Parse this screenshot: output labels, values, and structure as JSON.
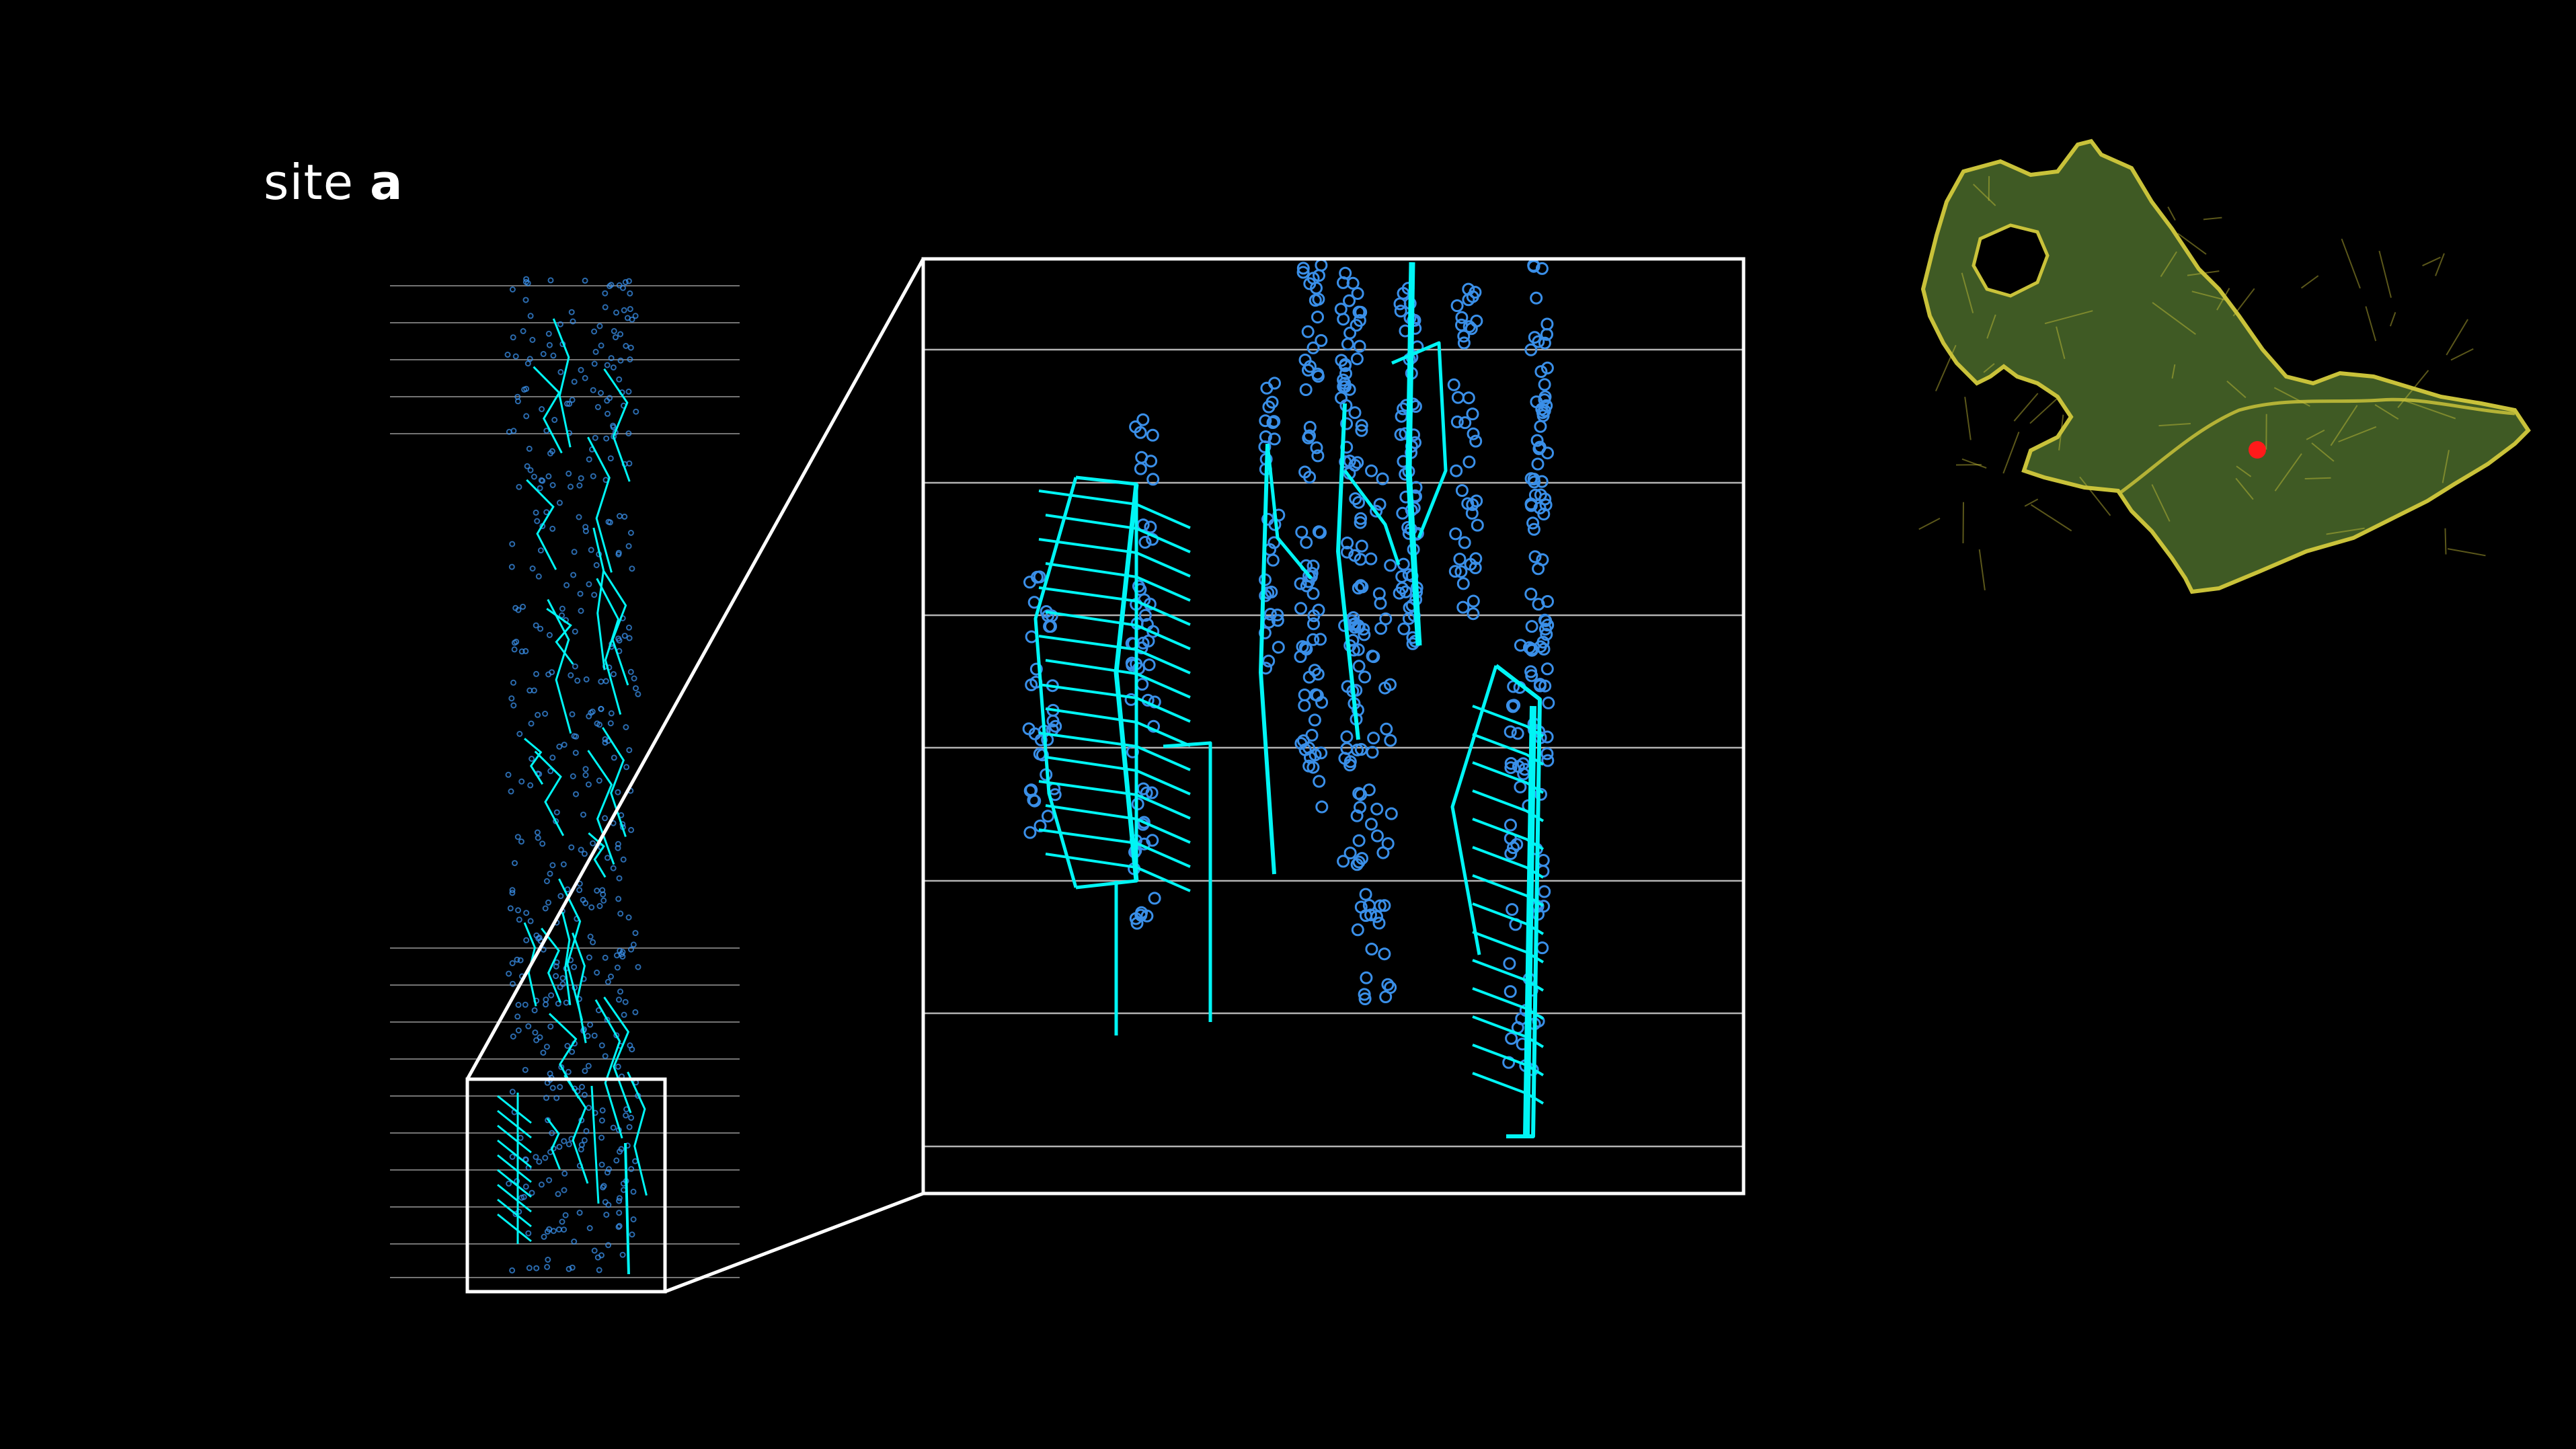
{
  "title": {
    "prefix": "site",
    "emphasis": "a"
  },
  "colors": {
    "background": "#000000",
    "trace": "#00f5f5",
    "points": "#3a8fe8",
    "gridline": "#ffffff",
    "map_land": "#3f5a24",
    "map_edge": "#c9c23a",
    "site_marker": "#ff1a1a"
  },
  "icons": {
    "map": "city-map-icon",
    "marker": "site-marker-icon"
  }
}
